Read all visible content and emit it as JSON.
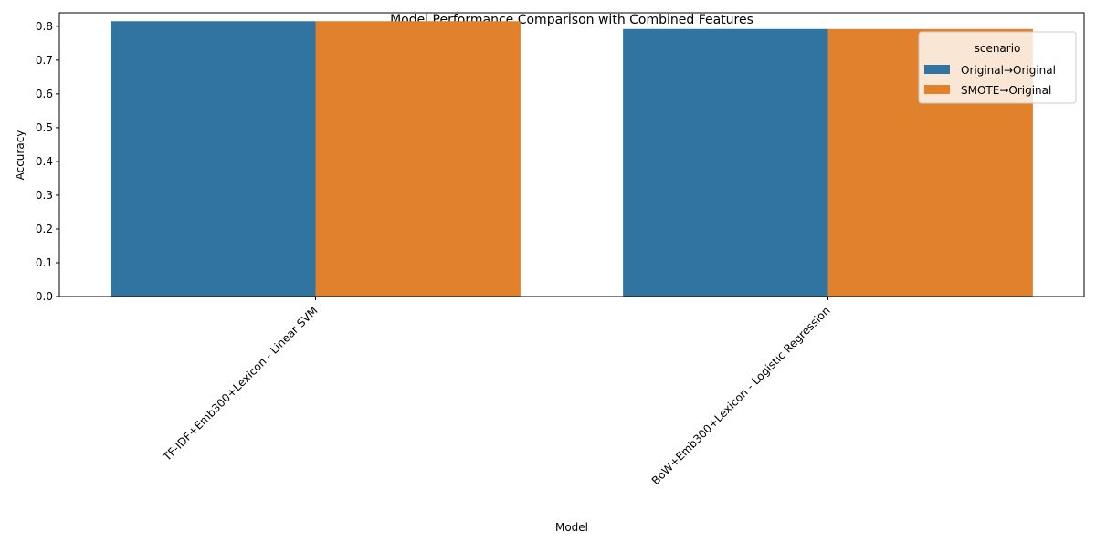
{
  "chart_data": {
    "type": "bar",
    "title": "Model Performance Comparison with Combined Features",
    "xlabel": "Model",
    "ylabel": "Accuracy",
    "categories": [
      "TF-IDF+Emb300+Lexicon - Linear SVM",
      "BoW+Emb300+Lexicon - Logistic Regression"
    ],
    "series": [
      {
        "name": "Original→Original",
        "color": "#3274a1",
        "values": [
          0.815,
          0.792
        ]
      },
      {
        "name": "SMOTE→Original",
        "color": "#e1812c",
        "values": [
          0.815,
          0.792
        ]
      }
    ],
    "ylim": [
      0,
      0.84
    ],
    "yticks": [
      0.0,
      0.1,
      0.2,
      0.3,
      0.4,
      0.5,
      0.6,
      0.7,
      0.8
    ],
    "ytick_labels": [
      "0.0",
      "0.1",
      "0.2",
      "0.3",
      "0.4",
      "0.5",
      "0.6",
      "0.7",
      "0.8"
    ],
    "grid": false,
    "legend": {
      "title": "scenario",
      "placement": "top-right"
    }
  }
}
